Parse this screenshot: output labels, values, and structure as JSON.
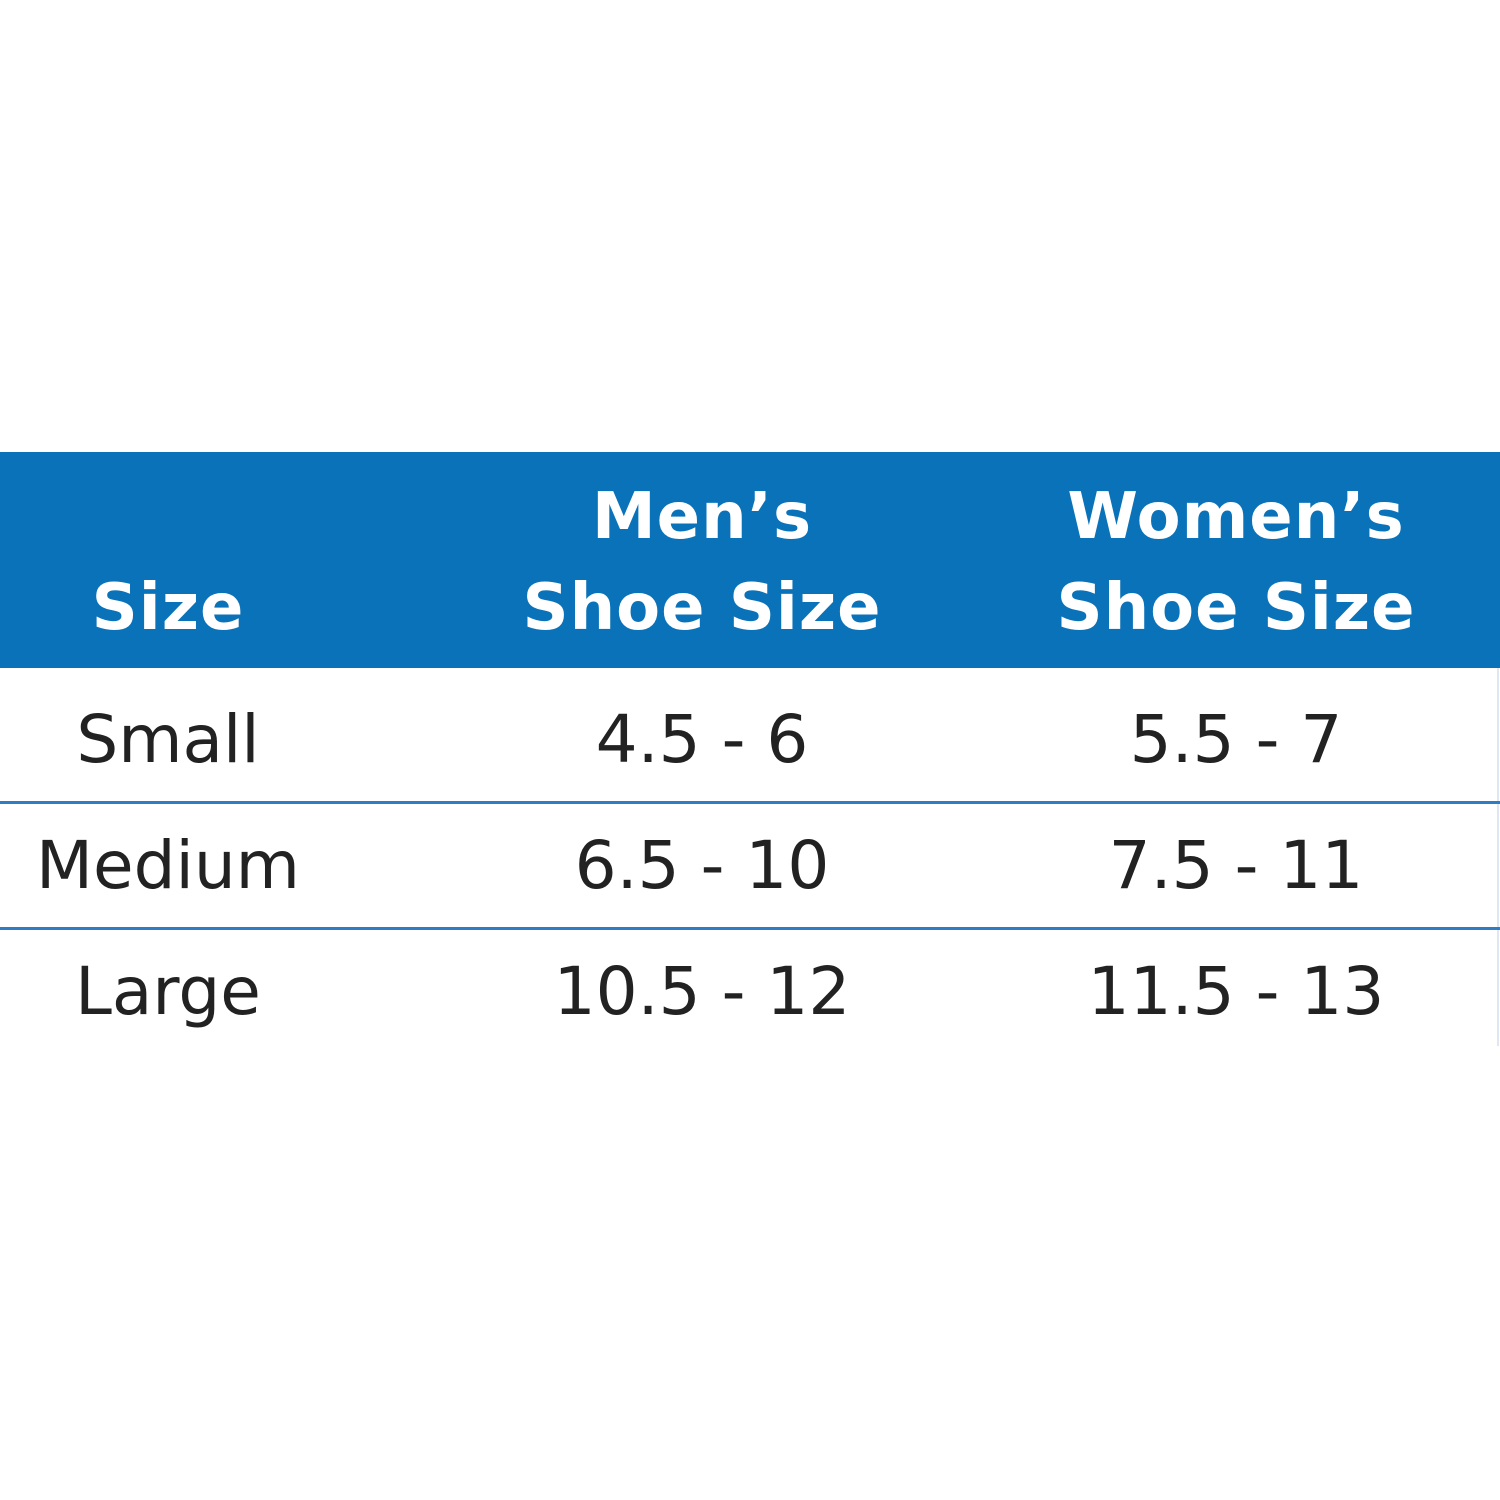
{
  "table": {
    "header": [
      [
        "Size"
      ],
      [
        "Men’s",
        "Shoe Size"
      ],
      [
        "Women’s",
        "Shoe Size"
      ]
    ],
    "rows": [
      [
        "Small",
        "4.5 - 6",
        "5.5 - 7"
      ],
      [
        "Medium",
        "6.5 - 10",
        "7.5 - 11"
      ],
      [
        "Large",
        "10.5 - 12",
        "11.5 - 13"
      ]
    ]
  }
}
